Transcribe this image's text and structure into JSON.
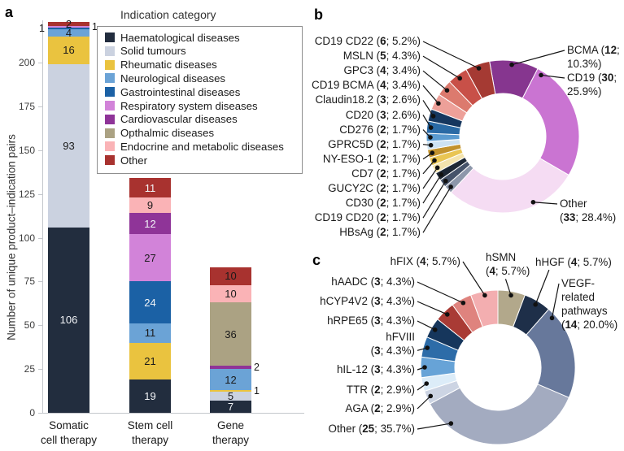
{
  "figure": {
    "panels": {
      "a": "a",
      "b": "b",
      "c": "c"
    }
  },
  "chart_data": [
    {
      "id": "panel-a",
      "type": "bar",
      "stacked": true,
      "ylabel": "Number of unique product–indication pairs",
      "ylim": [
        0,
        225
      ],
      "yticks": [
        0,
        25,
        50,
        75,
        100,
        125,
        150,
        175,
        200
      ],
      "grid": false,
      "legend_title": "Indication category",
      "legend_position": "top-right",
      "legend": [
        {
          "label": "Haematological diseases",
          "color": "#222d3e"
        },
        {
          "label": "Solid tumours",
          "color": "#cbd2e0"
        },
        {
          "label": "Rheumatic diseases",
          "color": "#eac33f"
        },
        {
          "label": "Neurological diseases",
          "color": "#6ba3d6"
        },
        {
          "label": "Gastrointestinal diseases",
          "color": "#1b61a5"
        },
        {
          "label": "Respiratory system diseases",
          "color": "#d283d9"
        },
        {
          "label": "Cardiovascular diseases",
          "color": "#8f3498"
        },
        {
          "label": "Opthalmic diseases",
          "color": "#aba283"
        },
        {
          "label": "Endocrine and metabolic diseases",
          "color": "#fab3b6"
        },
        {
          "label": "Other",
          "color": "#a8322f"
        }
      ],
      "bars": [
        {
          "category": "Somatic cell therapy",
          "label_lines": [
            "Somatic",
            "cell therapy"
          ],
          "total": 223,
          "segments": [
            {
              "category": "Haematological diseases",
              "value": 106,
              "label": "inside",
              "text": "light"
            },
            {
              "category": "Solid tumours",
              "value": 93,
              "label": "inside"
            },
            {
              "category": "Rheumatic diseases",
              "value": 16,
              "label": "inside"
            },
            {
              "category": "Neurological diseases",
              "value": 4,
              "label": "inside"
            },
            {
              "category": "Gastrointestinal diseases",
              "value": 1,
              "label": "left"
            },
            {
              "category": "Respiratory system diseases",
              "value": 1,
              "label": "right"
            },
            {
              "category": "Other",
              "value": 2,
              "label": "inside"
            }
          ]
        },
        {
          "category": "Stem cell therapy",
          "label_lines": [
            "Stem cell",
            "therapy"
          ],
          "total": 134,
          "segments": [
            {
              "category": "Haematological diseases",
              "value": 19,
              "label": "inside",
              "text": "light"
            },
            {
              "category": "Rheumatic diseases",
              "value": 21,
              "label": "inside"
            },
            {
              "category": "Neurological diseases",
              "value": 11,
              "label": "inside"
            },
            {
              "category": "Gastrointestinal diseases",
              "value": 24,
              "label": "inside",
              "text": "light"
            },
            {
              "category": "Respiratory system diseases",
              "value": 27,
              "label": "inside"
            },
            {
              "category": "Cardiovascular diseases",
              "value": 12,
              "label": "inside",
              "text": "light"
            },
            {
              "category": "Endocrine and metabolic diseases",
              "value": 9,
              "label": "inside"
            },
            {
              "category": "Other",
              "value": 11,
              "label": "inside",
              "text": "light"
            }
          ]
        },
        {
          "category": "Gene therapy",
          "label_lines": [
            "Gene",
            "therapy"
          ],
          "total": 83,
          "segments": [
            {
              "category": "Haematological diseases",
              "value": 7,
              "label": "inside",
              "text": "light"
            },
            {
              "category": "Solid tumours",
              "value": 5,
              "label": "inside"
            },
            {
              "category": "Rheumatic diseases",
              "value": 1,
              "label": "right"
            },
            {
              "category": "Neurological diseases",
              "value": 12,
              "label": "inside"
            },
            {
              "category": "Cardiovascular diseases",
              "value": 2,
              "label": "right"
            },
            {
              "category": "Opthalmic diseases",
              "value": 36,
              "label": "inside"
            },
            {
              "category": "Endocrine and metabolic diseases",
              "value": 10,
              "label": "inside"
            },
            {
              "category": "Other",
              "value": 10,
              "label": "inside"
            }
          ]
        }
      ]
    },
    {
      "id": "panel-b",
      "type": "pie",
      "subtype": "donut",
      "total": 116,
      "slices": [
        {
          "name": "BCMA",
          "count": 12,
          "pct": "10.3%",
          "color": "#86368f",
          "label_lines": [
            "BCMA (12;",
            "10.3%)"
          ]
        },
        {
          "name": "CD19",
          "count": 30,
          "pct": "25.9%",
          "color": "#ca74d2",
          "label_lines": [
            "CD19 (30;",
            "25.9%)"
          ]
        },
        {
          "name": "Other",
          "count": 33,
          "pct": "28.4%",
          "color": "#f5dcf3",
          "label_lines": [
            "Other",
            "(33; 28.4%)"
          ]
        },
        {
          "name": "HBsAg",
          "count": 2,
          "pct": "1.7%",
          "color": "#8d97aa",
          "label_lines": [
            "HBsAg (2; 1.7%)"
          ]
        },
        {
          "name": "CD19 CD20",
          "count": 2,
          "pct": "1.7%",
          "color": "#46536a",
          "label_lines": [
            "CD19 CD20 (2; 1.7%)"
          ]
        },
        {
          "name": "CD30",
          "count": 2,
          "pct": "1.7%",
          "color": "#1d2735",
          "label_lines": [
            "CD30 (2; 1.7%)"
          ]
        },
        {
          "name": "GUCY2C",
          "count": 2,
          "pct": "1.7%",
          "color": "#f4e4ae",
          "label_lines": [
            "GUCY2C (2; 1.7%)"
          ]
        },
        {
          "name": "CD7",
          "count": 2,
          "pct": "1.7%",
          "color": "#e9c553",
          "label_lines": [
            "CD7 (2; 1.7%)"
          ]
        },
        {
          "name": "NY-ESO-1",
          "count": 2,
          "pct": "1.7%",
          "color": "#c2922d",
          "label_lines": [
            "NY-ESO-1 (2; 1.7%)"
          ]
        },
        {
          "name": "GPRC5D",
          "count": 2,
          "pct": "1.7%",
          "color": "#cde2f2",
          "label_lines": [
            "GPRC5D (2; 1.7%)"
          ]
        },
        {
          "name": "CD276",
          "count": 2,
          "pct": "1.7%",
          "color": "#5b9bd0",
          "label_lines": [
            "CD276 (2; 1.7%)"
          ]
        },
        {
          "name": "CD20",
          "count": 3,
          "pct": "2.6%",
          "color": "#2a6aa5",
          "label_lines": [
            "CD20 (3; 2.6%)"
          ]
        },
        {
          "name": "Claudin18.2",
          "count": 3,
          "pct": "2.6%",
          "color": "#16375f",
          "label_lines": [
            "Claudin18.2 (3; 2.6%)"
          ]
        },
        {
          "name": "CD19 BCMA",
          "count": 4,
          "pct": "3.4%",
          "color": "#eda099",
          "label_lines": [
            "CD19 BCMA (4; 3.4%)"
          ]
        },
        {
          "name": "GPC3",
          "count": 4,
          "pct": "3.4%",
          "color": "#dc7a6e",
          "label_lines": [
            "GPC3 (4; 3.4%)"
          ]
        },
        {
          "name": "MSLN",
          "count": 5,
          "pct": "4.3%",
          "color": "#c85048",
          "label_lines": [
            "MSLN (5; 4.3%)"
          ]
        },
        {
          "name": "CD19 CD22",
          "count": 6,
          "pct": "5.2%",
          "color": "#a53a33",
          "label_lines": [
            "CD19 CD22 (6; 5.2%)"
          ]
        }
      ]
    },
    {
      "id": "panel-c",
      "type": "pie",
      "subtype": "donut",
      "total": 70,
      "slices": [
        {
          "name": "hSMN",
          "count": 4,
          "pct": "5.7%",
          "color": "#b2a88b",
          "label_lines": [
            "hSMN",
            "(4; 5.7%)"
          ]
        },
        {
          "name": "hHGF",
          "count": 4,
          "pct": "5.7%",
          "color": "#1e2f49",
          "label_lines": [
            "hHGF (4; 5.7%)"
          ]
        },
        {
          "name": "VEGF-related pathways",
          "count": 14,
          "pct": "20.0%",
          "color": "#67789b",
          "label_lines": [
            "VEGF-",
            "related",
            "pathways",
            "(14; 20.0%)"
          ]
        },
        {
          "name": "Other",
          "count": 25,
          "pct": "35.7%",
          "color": "#a3abc0",
          "label_lines": [
            "Other (25; 35.7%)"
          ]
        },
        {
          "name": "AGA",
          "count": 2,
          "pct": "2.9%",
          "color": "#ccd4e3",
          "label_lines": [
            "AGA (2; 2.9%)"
          ]
        },
        {
          "name": "TTR",
          "count": 2,
          "pct": "2.9%",
          "color": "#dcecf8",
          "label_lines": [
            "TTR (2; 2.9%)"
          ]
        },
        {
          "name": "hIL-12",
          "count": 3,
          "pct": "4.3%",
          "color": "#67a3d7",
          "label_lines": [
            "hIL-12 (3; 4.3%)"
          ]
        },
        {
          "name": "hFVIII",
          "count": 3,
          "pct": "4.3%",
          "color": "#2d6ca8",
          "label_lines": [
            "hFVIII",
            "(3; 4.3%)"
          ]
        },
        {
          "name": "hRPE65",
          "count": 3,
          "pct": "4.3%",
          "color": "#16365c",
          "label_lines": [
            "hRPE65 (3; 4.3%)"
          ]
        },
        {
          "name": "hCYP4V2",
          "count": 3,
          "pct": "4.3%",
          "color": "#a93b35",
          "label_lines": [
            "hCYP4V2 (3; 4.3%)"
          ]
        },
        {
          "name": "hAADC",
          "count": 3,
          "pct": "4.3%",
          "color": "#df837e",
          "label_lines": [
            "hAADC (3; 4.3%)"
          ]
        },
        {
          "name": "hFIX",
          "count": 4,
          "pct": "5.7%",
          "color": "#f3aeb0",
          "label_lines": [
            "hFIX (4; 5.7%)"
          ]
        }
      ]
    }
  ]
}
